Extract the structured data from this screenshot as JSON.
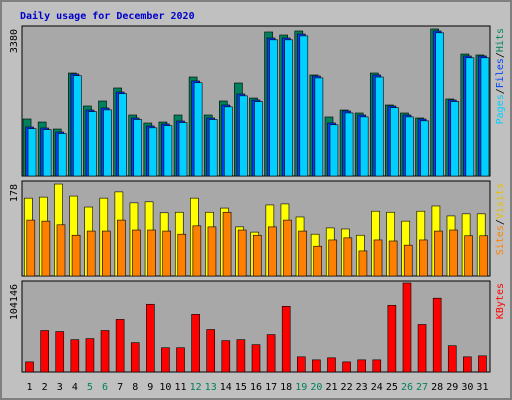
{
  "chart_data": [
    {
      "type": "bar",
      "title": "Daily usage for December 2020",
      "ylim": [
        0,
        3380
      ],
      "yticks": [
        3380
      ],
      "separator": "/",
      "series": [
        {
          "name": "Hits",
          "color": "#00805c",
          "values": [
            1302,
            1233,
            1073,
            2352,
            1599,
            1713,
            2010,
            1393,
            1210,
            1233,
            1393,
            2261,
            1393,
            1713,
            2124,
            1781,
            3289,
            3220,
            3312,
            2307,
            1348,
            1507,
            1439,
            2352,
            1622,
            1439,
            1325,
            3358,
            1759,
            2786,
            2764
          ]
        },
        {
          "name": "Files",
          "color": "#0040ff",
          "values": [
            1119,
            1096,
            1005,
            2330,
            1507,
            1553,
            1919,
            1325,
            1142,
            1188,
            1256,
            2170,
            1325,
            1622,
            1873,
            1736,
            3152,
            3152,
            3243,
            2284,
            1211,
            1485,
            1393,
            2307,
            1599,
            1393,
            1302,
            3312,
            1736,
            2741,
            2741
          ]
        },
        {
          "name": "Pages",
          "color": "#00d0ff",
          "values": [
            1080,
            1060,
            970,
            2290,
            1470,
            1510,
            1880,
            1290,
            1100,
            1150,
            1220,
            2130,
            1290,
            1580,
            1830,
            1700,
            3110,
            3110,
            3200,
            2240,
            1170,
            1440,
            1350,
            2260,
            1560,
            1350,
            1260,
            3270,
            1700,
            2700,
            2700
          ]
        }
      ]
    },
    {
      "type": "bar",
      "ylim": [
        0,
        178
      ],
      "yticks": [
        178
      ],
      "separator": "/",
      "series": [
        {
          "name": "Visits",
          "color": "#ffff00",
          "label_color": "#e8c000",
          "values": [
            149,
            151,
            176,
            153,
            132,
            149,
            161,
            140,
            142,
            121,
            122,
            149,
            122,
            130,
            94,
            84,
            136,
            138,
            113,
            80,
            92,
            90,
            78,
            124,
            122,
            105,
            124,
            134,
            115,
            119,
            119
          ]
        },
        {
          "name": "Sites",
          "color": "#ff8000",
          "values": [
            107,
            105,
            98,
            78,
            86,
            86,
            107,
            88,
            88,
            86,
            80,
            96,
            94,
            122,
            88,
            78,
            94,
            107,
            86,
            57,
            69,
            73,
            48,
            69,
            67,
            59,
            69,
            86,
            88,
            77,
            77
          ]
        }
      ]
    },
    {
      "type": "bar",
      "ylim": [
        0,
        104146
      ],
      "yticks": [
        104146
      ],
      "series": [
        {
          "name": "KBytes",
          "color": "#ff0000",
          "values": [
            11830,
            48503,
            47320,
            37856,
            39039,
            48503,
            61516,
            34307,
            79261,
            28392,
            28392,
            67431,
            49686,
            36673,
            37856,
            31941,
            43771,
            76895,
            17745,
            14196,
            16562,
            11830,
            14196,
            14196,
            78078,
            104146,
            55601,
            86359,
            30758,
            17745,
            18928
          ]
        }
      ],
      "categories": [
        "1",
        "2",
        "3",
        "4",
        "5",
        "6",
        "7",
        "8",
        "9",
        "10",
        "11",
        "12",
        "13",
        "14",
        "15",
        "16",
        "17",
        "18",
        "19",
        "20",
        "21",
        "22",
        "23",
        "24",
        "25",
        "26",
        "27",
        "28",
        "29",
        "30",
        "31"
      ],
      "category_colors": [
        "#000000",
        "#000000",
        "#000000",
        "#000000",
        "#00805c",
        "#00805c",
        "#000000",
        "#000000",
        "#000000",
        "#000000",
        "#000000",
        "#00805c",
        "#00805c",
        "#000000",
        "#000000",
        "#000000",
        "#000000",
        "#000000",
        "#00805c",
        "#00805c",
        "#000000",
        "#000000",
        "#000000",
        "#000000",
        "#000000",
        "#00805c",
        "#00805c",
        "#000000",
        "#000000",
        "#000000",
        "#000000"
      ]
    }
  ]
}
